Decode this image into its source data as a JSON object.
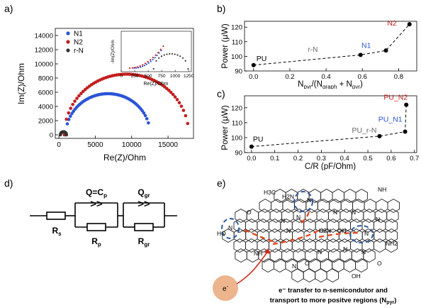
{
  "figure": {
    "panel_labels": [
      "a)",
      "b)",
      "c)",
      "d)",
      "e)"
    ]
  },
  "chart_data": [
    {
      "panel": "a",
      "type": "scatter",
      "xlabel": "Re(Z)/Ohm",
      "ylabel": "Im(Z)/Ohm",
      "xlim": [
        -500,
        18500
      ],
      "ylim": [
        -500,
        15000
      ],
      "xticks": [
        "0",
        "5000",
        "10000",
        "15000"
      ],
      "xtick_values": [
        0,
        5000,
        10000,
        15000
      ],
      "yticks": [
        "0",
        "2000",
        "4000",
        "6000",
        "8000",
        "10000",
        "12000",
        "14000"
      ],
      "ytick_values": [
        0,
        2000,
        4000,
        6000,
        8000,
        10000,
        12000,
        14000
      ],
      "legend_position": "top-left",
      "series": [
        {
          "name": "N1",
          "color": "#2b54d6",
          "center": 6750,
          "radius": 5800,
          "x_start": 950,
          "x_end": 12300,
          "n_points": 55
        },
        {
          "name": "N2",
          "color": "#c41e1e",
          "center": 9300,
          "radius": 8550,
          "x_start": 750,
          "x_end": 17700,
          "n_points": 60
        },
        {
          "name": "r-N",
          "color": "#333333",
          "center": 620,
          "radius": 420,
          "x_start": 200,
          "x_end": 1040,
          "n_points": 30
        }
      ],
      "inset": {
        "xlabel": "Re(Z)/Ohm",
        "ylabel": "-Im(Z)/Ohm",
        "xlim": [
          0,
          1300
        ],
        "xticks": [
          "0",
          "250",
          "500",
          "750",
          "1000",
          "1250"
        ],
        "xtick_values": [
          0,
          250,
          500,
          750,
          1000,
          1250
        ]
      }
    },
    {
      "panel": "b",
      "type": "line",
      "xlabel": "N_pyr/(N_graph + N_pyr)",
      "ylabel": "Power (μW)",
      "xlim": [
        -0.05,
        0.9
      ],
      "ylim": [
        90,
        124
      ],
      "xticks": [
        "0.0",
        "0.2",
        "0.4",
        "0.6",
        "0.8"
      ],
      "xtick_values": [
        0,
        0.2,
        0.4,
        0.6,
        0.8
      ],
      "yticks": [
        "90",
        "100",
        "110",
        "120"
      ],
      "ytick_values": [
        90,
        100,
        110,
        120
      ],
      "points": [
        {
          "x": 0.0,
          "y": 94,
          "label": "PU",
          "label_color": "#000000"
        },
        {
          "x": 0.59,
          "y": 101,
          "label": "N1",
          "label_color": "#2b54d6"
        },
        {
          "x": 0.73,
          "y": 104,
          "label": "",
          "label_color": "#000000"
        },
        {
          "x": 0.86,
          "y": 122,
          "label": "N2",
          "label_color": "#c41e1e"
        }
      ],
      "annotations": [
        {
          "text": "r-N",
          "x": 0.3,
          "y": 103.2,
          "color": "#666666"
        }
      ]
    },
    {
      "panel": "c",
      "type": "line",
      "xlabel": "C/R (pF/Ohm)",
      "ylabel": "Power (μW)",
      "xlim": [
        -0.03,
        0.71
      ],
      "ylim": [
        90,
        128
      ],
      "xticks": [
        "0.0",
        "0.1",
        "0.2",
        "0.3",
        "0.4",
        "0.5",
        "0.6",
        "0.7"
      ],
      "xtick_values": [
        0,
        0.1,
        0.2,
        0.3,
        0.4,
        0.5,
        0.6,
        0.7
      ],
      "yticks": [
        "90",
        "100",
        "110",
        "120"
      ],
      "ytick_values": [
        90,
        100,
        110,
        120
      ],
      "points": [
        {
          "x": 0.0,
          "y": 94,
          "label": "PU",
          "label_color": "#000000"
        },
        {
          "x": 0.55,
          "y": 101,
          "label": "PU_r-N",
          "label_color": "#666666"
        },
        {
          "x": 0.66,
          "y": 104,
          "label": "PU_N1",
          "label_color": "#2b54d6"
        },
        {
          "x": 0.665,
          "y": 122,
          "label": "PU_N2",
          "label_color": "#c41e1e"
        }
      ]
    }
  ],
  "circuit": {
    "q1_label": "Q=C",
    "q1_sub": "p",
    "q2_label": "Q",
    "q2_sub": "gr",
    "symbol": ">>",
    "rs_label": "R",
    "rs_sub": "s",
    "rp_label": "R",
    "rp_sub": "p",
    "rgr_label": "R",
    "rgr_sub": "gr"
  },
  "molecule": {
    "groups": [
      "H3C",
      "H2N",
      "NH",
      "N",
      "N",
      "O",
      "HO",
      "N",
      "N",
      "N",
      "N",
      "N",
      "N",
      "H2N",
      "OH",
      "N",
      "NH2",
      "NH",
      "N",
      "N",
      "N",
      "OH",
      "O",
      "N",
      "O"
    ],
    "electron_label": "e",
    "electron_sup": "-",
    "caption_line1": "e⁻ transfer to n-semicondutor and",
    "caption_line2": "transport to more positve regions (N",
    "caption_sub": "pyr",
    "caption_end": ")"
  }
}
